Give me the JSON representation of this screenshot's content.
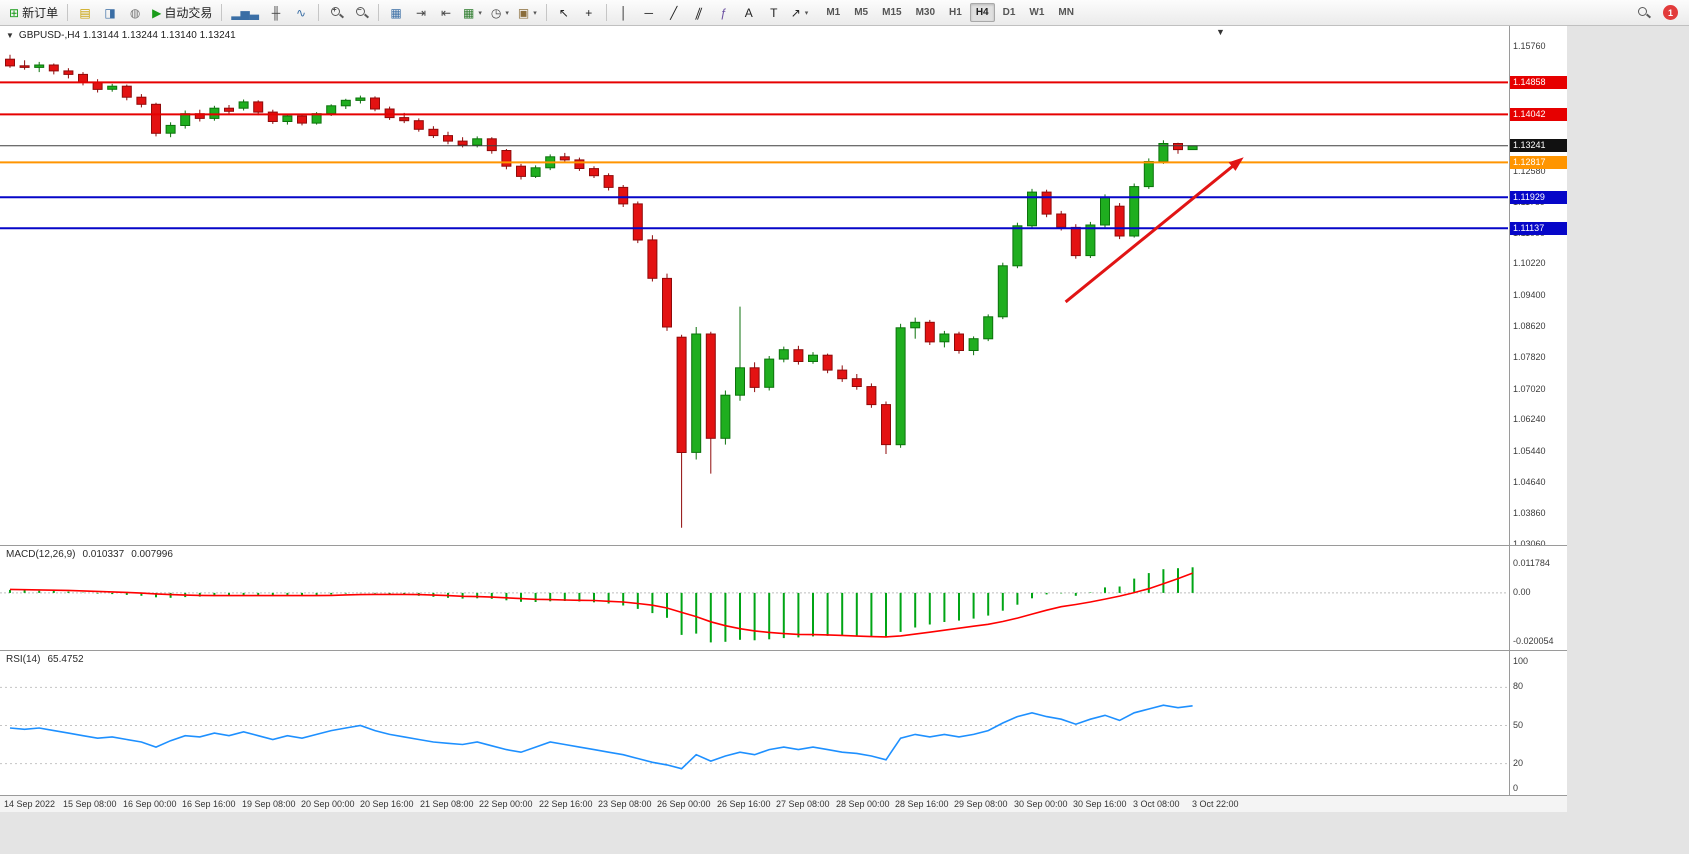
{
  "icons": {
    "collapse_triangle": "▼",
    "shift_marker": "▼",
    "dropdown_caret": "▾"
  },
  "window": {
    "symbol_ohlc_label": "GBPUSD-,H4 1.13144 1.13244 1.13140 1.13241"
  },
  "toolbar": {
    "notification_count": "1",
    "items": [
      {
        "name": "new-order-button",
        "icon": "new-order-icon",
        "glyph": "⊞",
        "color": "#1a9c1a",
        "label": "新订单"
      },
      {
        "type": "sep"
      },
      {
        "name": "profiles-button",
        "icon": "profiles-icon",
        "glyph": "▤",
        "color": "#c8a000"
      },
      {
        "name": "market-watch-button",
        "icon": "market-watch-icon",
        "glyph": "◨",
        "color": "#3a6ea5"
      },
      {
        "name": "data-window-button",
        "icon": "data-window-icon",
        "glyph": "◍",
        "color": "#777777"
      },
      {
        "name": "algo-trading-button",
        "icon": "algo-trading-play-icon",
        "glyph": "▶",
        "color": "#1a9c1a",
        "label": "自动交易"
      },
      {
        "type": "sep"
      },
      {
        "name": "bar-chart-button",
        "icon": "bar-chart-icon",
        "glyph": "▂▅▃",
        "color": "#3a6ea5"
      },
      {
        "name": "candlestick-chart-button",
        "icon": "candlestick-icon",
        "glyph": "╫",
        "color": "#444444"
      },
      {
        "name": "line-chart-button",
        "icon": "line-chart-icon",
        "glyph": "∿",
        "color": "#3a6ea5"
      },
      {
        "type": "sep"
      },
      {
        "name": "zoom-in-button",
        "icon": "zoom-in-icon",
        "kind": "magnifier",
        "modifier": "+"
      },
      {
        "name": "zoom-out-button",
        "icon": "zoom-out-icon",
        "kind": "magnifier",
        "modifier": "−"
      },
      {
        "type": "sep"
      },
      {
        "name": "tile-windows-button",
        "icon": "tile-windows-icon",
        "glyph": "▦",
        "color": "#3a6ea5"
      },
      {
        "name": "auto-scroll-button",
        "icon": "auto-scroll-icon",
        "glyph": "⇥",
        "color": "#444444"
      },
      {
        "name": "chart-shift-button",
        "icon": "chart-shift-icon",
        "glyph": "⇤",
        "color": "#444444"
      },
      {
        "name": "new-chart-button",
        "icon": "new-chart-icon",
        "glyph": "▦",
        "color": "#2a7a2a",
        "dropdown": true
      },
      {
        "name": "periods-button",
        "icon": "clock-icon",
        "glyph": "◷",
        "color": "#444444",
        "dropdown": true
      },
      {
        "name": "templates-button",
        "icon": "template-icon",
        "glyph": "▣",
        "color": "#8a6d3b",
        "dropdown": true
      },
      {
        "type": "sep"
      },
      {
        "name": "cursor-button",
        "icon": "cursor-icon",
        "glyph": "↖",
        "color": "#222222"
      },
      {
        "name": "crosshair-button",
        "icon": "crosshair-icon",
        "glyph": "+",
        "color": "#222222"
      },
      {
        "type": "sep"
      },
      {
        "name": "vertical-line-button",
        "icon": "vertical-line-icon",
        "glyph": "│",
        "color": "#222222"
      },
      {
        "name": "horizontal-line-button",
        "icon": "horizontal-line-icon",
        "glyph": "─",
        "color": "#222222"
      },
      {
        "name": "trendline-button",
        "icon": "trendline-icon",
        "glyph": "╱",
        "color": "#222222"
      },
      {
        "name": "equidistant-channel-button",
        "icon": "channel-icon",
        "glyph": "∥",
        "color": "#222222",
        "slant": true
      },
      {
        "name": "fibonacci-button",
        "icon": "fibonacci-icon",
        "glyph": "ƒ",
        "color": "#6a4fa0"
      },
      {
        "name": "text-button",
        "icon": "text-icon",
        "glyph": "A",
        "color": "#222222"
      },
      {
        "name": "label-button",
        "icon": "label-icon",
        "glyph": "T",
        "color": "#222222"
      },
      {
        "name": "arrows-button",
        "icon": "arrow-object-icon",
        "glyph": "↗",
        "color": "#222222",
        "dropdown": true
      }
    ],
    "timeframes": [
      "M1",
      "M5",
      "M15",
      "M30",
      "H1",
      "H4",
      "D1",
      "W1",
      "MN"
    ],
    "active_timeframe": "H4"
  },
  "chart_data": [
    {
      "type": "candlestick",
      "title": "GBPUSD- H4",
      "up_color": "#1fae1f",
      "up_border": "#0c720c",
      "down_color": "#e31212",
      "down_border": "#8f0a0a",
      "ylim": [
        1.0306,
        1.1576
      ],
      "ohlc": [
        [
          1.1545,
          1.1556,
          1.1523,
          1.1528
        ],
        [
          1.1528,
          1.1542,
          1.1518,
          1.1524
        ],
        [
          1.1524,
          1.1538,
          1.1512,
          1.153
        ],
        [
          1.153,
          1.1534,
          1.1506,
          1.1515
        ],
        [
          1.1515,
          1.1522,
          1.1496,
          1.1506
        ],
        [
          1.1506,
          1.1512,
          1.1478,
          1.1486
        ],
        [
          1.1486,
          1.1494,
          1.146,
          1.1468
        ],
        [
          1.1468,
          1.1482,
          1.1462,
          1.1476
        ],
        [
          1.1476,
          1.148,
          1.144,
          1.1448
        ],
        [
          1.1448,
          1.1456,
          1.1422,
          1.143
        ],
        [
          1.143,
          1.1434,
          1.1348,
          1.1356
        ],
        [
          1.1356,
          1.1384,
          1.1346,
          1.1376
        ],
        [
          1.1376,
          1.1414,
          1.1368,
          1.1406
        ],
        [
          1.1406,
          1.1416,
          1.1386,
          1.1394
        ],
        [
          1.1394,
          1.1426,
          1.1388,
          1.142
        ],
        [
          1.142,
          1.1428,
          1.1404,
          1.1412
        ],
        [
          1.142,
          1.1442,
          1.1414,
          1.1436
        ],
        [
          1.1436,
          1.144,
          1.1402,
          1.141
        ],
        [
          1.141,
          1.1416,
          1.138,
          1.1386
        ],
        [
          1.1386,
          1.1406,
          1.1378,
          1.14
        ],
        [
          1.14,
          1.1404,
          1.1376,
          1.1382
        ],
        [
          1.1382,
          1.141,
          1.1378,
          1.1406
        ],
        [
          1.1406,
          1.143,
          1.14,
          1.1426
        ],
        [
          1.1426,
          1.1444,
          1.1418,
          1.144
        ],
        [
          1.144,
          1.1452,
          1.1432,
          1.1446
        ],
        [
          1.1446,
          1.145,
          1.1412,
          1.1418
        ],
        [
          1.1418,
          1.1424,
          1.139,
          1.1396
        ],
        [
          1.1396,
          1.1408,
          1.1382,
          1.1388
        ],
        [
          1.1388,
          1.1394,
          1.136,
          1.1366
        ],
        [
          1.1366,
          1.1374,
          1.1344,
          1.135
        ],
        [
          1.135,
          1.136,
          1.1328,
          1.1336
        ],
        [
          1.1336,
          1.1346,
          1.132,
          1.1326
        ],
        [
          1.1326,
          1.1348,
          1.132,
          1.1342
        ],
        [
          1.1342,
          1.1346,
          1.1304,
          1.1312
        ],
        [
          1.1312,
          1.1316,
          1.1264,
          1.1272
        ],
        [
          1.1272,
          1.1278,
          1.1238,
          1.1246
        ],
        [
          1.1246,
          1.1274,
          1.1242,
          1.1268
        ],
        [
          1.1268,
          1.1302,
          1.1262,
          1.1296
        ],
        [
          1.1296,
          1.1306,
          1.1282,
          1.1288
        ],
        [
          1.1288,
          1.1294,
          1.126,
          1.1266
        ],
        [
          1.1266,
          1.1272,
          1.1242,
          1.1248
        ],
        [
          1.1248,
          1.1254,
          1.121,
          1.1218
        ],
        [
          1.1218,
          1.1224,
          1.1168,
          1.1176
        ],
        [
          1.1176,
          1.1182,
          1.1076,
          1.1084
        ],
        [
          1.1084,
          1.1096,
          1.0978,
          1.0986
        ],
        [
          1.0986,
          1.0998,
          1.0852,
          1.0862
        ],
        [
          1.0836,
          1.0842,
          1.035,
          1.0542
        ],
        [
          1.0542,
          1.0862,
          1.0524,
          1.0844
        ],
        [
          1.0844,
          1.085,
          1.0488,
          1.0578
        ],
        [
          1.0578,
          1.07,
          1.0562,
          1.0688
        ],
        [
          1.0688,
          1.0914,
          1.0674,
          1.0758
        ],
        [
          1.0758,
          1.0772,
          1.0696,
          1.0708
        ],
        [
          1.0708,
          1.0788,
          1.07,
          1.078
        ],
        [
          1.078,
          1.0812,
          1.0772,
          1.0804
        ],
        [
          1.0804,
          1.0814,
          1.0766,
          1.0774
        ],
        [
          1.0774,
          1.0798,
          1.0768,
          1.079
        ],
        [
          1.079,
          1.0794,
          1.0744,
          1.0752
        ],
        [
          1.0752,
          1.0764,
          1.0722,
          1.073
        ],
        [
          1.073,
          1.0742,
          1.0702,
          1.071
        ],
        [
          1.071,
          1.0718,
          1.0656,
          1.0664
        ],
        [
          1.0664,
          1.0672,
          1.0538,
          1.0562
        ],
        [
          1.0562,
          1.087,
          1.0554,
          1.086
        ],
        [
          1.086,
          1.0886,
          1.0832,
          1.0874
        ],
        [
          1.0874,
          1.088,
          1.0816,
          1.0824
        ],
        [
          1.0824,
          1.0852,
          1.081,
          1.0844
        ],
        [
          1.0844,
          1.085,
          1.0794,
          1.0802
        ],
        [
          1.0802,
          1.0838,
          1.079,
          1.0832
        ],
        [
          1.0832,
          1.0894,
          1.0826,
          1.0888
        ],
        [
          1.0888,
          1.1026,
          1.0882,
          1.1018
        ],
        [
          1.1018,
          1.1128,
          1.1012,
          1.112
        ],
        [
          1.112,
          1.1214,
          1.1114,
          1.1206
        ],
        [
          1.1206,
          1.1212,
          1.1142,
          1.115
        ],
        [
          1.115,
          1.1158,
          1.1108,
          1.1116
        ],
        [
          1.1116,
          1.1124,
          1.1036,
          1.1044
        ],
        [
          1.1044,
          1.113,
          1.1038,
          1.1122
        ],
        [
          1.1122,
          1.12,
          1.1116,
          1.1192
        ],
        [
          1.117,
          1.1178,
          1.1086,
          1.1094
        ],
        [
          1.1094,
          1.1228,
          1.109,
          1.122
        ],
        [
          1.122,
          1.1292,
          1.1214,
          1.1284
        ],
        [
          1.1284,
          1.1338,
          1.1278,
          1.133
        ],
        [
          1.133,
          1.1332,
          1.1304,
          1.13144
        ],
        [
          1.13144,
          1.13244,
          1.1314,
          1.13241
        ]
      ],
      "hlines": [
        {
          "price": 1.14858,
          "color": "#e60000",
          "width": 2,
          "label": "1.14858"
        },
        {
          "price": 1.14042,
          "color": "#e60000",
          "width": 2,
          "label": "1.14042"
        },
        {
          "price": 1.13241,
          "color": "#3f3f3f",
          "width": 1,
          "label": "1.13241",
          "badge": "#111111"
        },
        {
          "price": 1.12817,
          "color": "#ff9500",
          "width": 2,
          "label": "1.12817"
        },
        {
          "price": 1.11929,
          "color": "#0606c8",
          "width": 2,
          "label": "1.11929"
        },
        {
          "price": 1.11137,
          "color": "#0606c8",
          "width": 2,
          "label": "1.11137"
        }
      ],
      "axis_ticks": [
        "1.15760",
        "1.13280",
        "1.12580",
        "1.11789",
        "1.11000",
        "1.10220",
        "1.09400",
        "1.08620",
        "1.07820",
        "1.07020",
        "1.06240",
        "1.05440",
        "1.04640",
        "1.03860",
        "1.03060"
      ],
      "arrow": {
        "color": "#e11414",
        "width": 3,
        "from": {
          "bar": 72.3,
          "price": 1.0926
        },
        "to": {
          "bar": 84.5,
          "price": 1.1295
        }
      }
    },
    {
      "type": "bar+line",
      "name": "MACD(12,26,9)",
      "value_main": "0.010337",
      "value_signal": "0.007996",
      "histogram_color": "#00a515",
      "signal_color": "#ff0000",
      "ylim": [
        -0.0215,
        0.0125
      ],
      "axis_ticks": [
        "0.011784",
        "0.00",
        "-0.020054"
      ],
      "histogram": [
        0.0012,
        0.001,
        0.0009,
        0.0008,
        0.0005,
        0.0001,
        -0.0003,
        -0.0005,
        -0.0008,
        -0.0012,
        -0.0018,
        -0.002,
        -0.0017,
        -0.0015,
        -0.0013,
        -0.0012,
        -0.001,
        -0.001,
        -0.0012,
        -0.0011,
        -0.0011,
        -0.0009,
        -0.0006,
        -0.0003,
        -0.0001,
        -0.0002,
        -0.0005,
        -0.0008,
        -0.0012,
        -0.0016,
        -0.002,
        -0.0023,
        -0.0022,
        -0.0024,
        -0.003,
        -0.0036,
        -0.0037,
        -0.0034,
        -0.0033,
        -0.0035,
        -0.0038,
        -0.0043,
        -0.0051,
        -0.0065,
        -0.0082,
        -0.0101,
        -0.017,
        -0.0165,
        -0.020054,
        -0.0198,
        -0.019,
        -0.0192,
        -0.0188,
        -0.0183,
        -0.018,
        -0.0176,
        -0.0174,
        -0.0173,
        -0.0174,
        -0.0176,
        -0.018,
        -0.0158,
        -0.014,
        -0.0128,
        -0.0118,
        -0.0112,
        -0.0104,
        -0.0092,
        -0.0072,
        -0.0048,
        -0.0022,
        -0.0006,
        -0.0002,
        -0.0012,
        0.0002,
        0.0022,
        0.0026,
        0.0058,
        0.008,
        0.0096,
        0.01,
        0.010337
      ],
      "signal": [
        0.0014,
        0.0013,
        0.0012,
        0.0011,
        0.001,
        0.0008,
        0.0006,
        0.0004,
        0.0002,
        -0.0001,
        -0.0004,
        -0.0007,
        -0.0009,
        -0.001,
        -0.0011,
        -0.0011,
        -0.0011,
        -0.0011,
        -0.0011,
        -0.0011,
        -0.0011,
        -0.0011,
        -0.001,
        -0.0008,
        -0.0007,
        -0.0006,
        -0.0006,
        -0.0006,
        -0.0007,
        -0.0009,
        -0.0011,
        -0.0014,
        -0.0015,
        -0.0017,
        -0.002,
        -0.0023,
        -0.0026,
        -0.0027,
        -0.0029,
        -0.003,
        -0.0031,
        -0.0034,
        -0.0037,
        -0.0043,
        -0.005,
        -0.0061,
        -0.0079,
        -0.0096,
        -0.0117,
        -0.0133,
        -0.0145,
        -0.0154,
        -0.016,
        -0.0165,
        -0.0168,
        -0.0169,
        -0.017,
        -0.0172,
        -0.0175,
        -0.0177,
        -0.0178,
        -0.0174,
        -0.0167,
        -0.0159,
        -0.0151,
        -0.0143,
        -0.0135,
        -0.0127,
        -0.0116,
        -0.0102,
        -0.0086,
        -0.007,
        -0.0056,
        -0.0047,
        -0.0037,
        -0.0025,
        -0.0013,
        0.0001,
        0.0017,
        0.0037,
        0.0058,
        0.007996
      ]
    },
    {
      "type": "line",
      "name": "RSI(14)",
      "value": "65.4752",
      "line_color": "#1e90ff",
      "ylim": [
        0,
        100
      ],
      "levels": [
        80,
        50,
        20
      ],
      "axis_ticks": [
        "100",
        "80",
        "50",
        "20",
        "0"
      ],
      "values": [
        48,
        47,
        48,
        46,
        44,
        42,
        40,
        41,
        39,
        37,
        33,
        38,
        42,
        41,
        44,
        42,
        45,
        42,
        39,
        42,
        40,
        43,
        46,
        48,
        50,
        46,
        43,
        41,
        39,
        37,
        36,
        35,
        37,
        34,
        31,
        29,
        33,
        37,
        35,
        33,
        31,
        29,
        27,
        24,
        21,
        19,
        16,
        27,
        22,
        26,
        29,
        27,
        31,
        33,
        31,
        33,
        31,
        29,
        28,
        26,
        23,
        40,
        43,
        41,
        43,
        41,
        43,
        46,
        52,
        57,
        60,
        57,
        55,
        51,
        55,
        58,
        54,
        60,
        63,
        66,
        64,
        65.4752
      ]
    }
  ],
  "time_axis": {
    "labels": [
      "14 Sep 2022",
      "15 Sep 08:00",
      "16 Sep 00:00",
      "16 Sep 16:00",
      "19 Sep 08:00",
      "20 Sep 00:00",
      "20 Sep 16:00",
      "21 Sep 08:00",
      "22 Sep 00:00",
      "22 Sep 16:00",
      "23 Sep 08:00",
      "26 Sep 00:00",
      "26 Sep 16:00",
      "27 Sep 08:00",
      "28 Sep 00:00",
      "28 Sep 16:00",
      "29 Sep 08:00",
      "30 Sep 00:00",
      "30 Sep 16:00",
      "3 Oct 08:00",
      "3 Oct 22:00"
    ]
  }
}
